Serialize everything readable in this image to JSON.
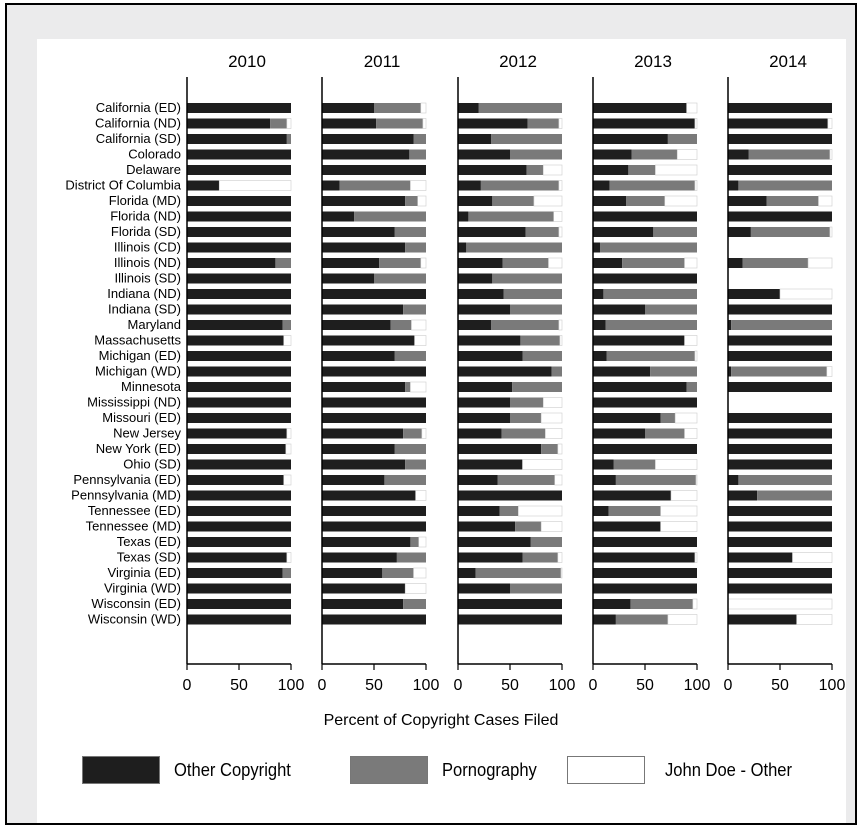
{
  "chart_data": {
    "type": "bar",
    "orientation": "horizontal",
    "stacked": true,
    "xlabel": "Percent of Copyright Cases Filed",
    "xlim": [
      0,
      100
    ],
    "xticks": [
      "0",
      "50",
      "100"
    ],
    "panels": [
      "2010",
      "2011",
      "2012",
      "2013",
      "2014"
    ],
    "categories": [
      "California (ED)",
      "California (ND)",
      "California (SD)",
      "Colorado",
      "Delaware",
      "District Of Columbia",
      "Florida (MD)",
      "Florida (ND)",
      "Florida (SD)",
      "Illinois (CD)",
      "Illinois (ND)",
      "Illinois (SD)",
      "Indiana (ND)",
      "Indiana (SD)",
      "Maryland",
      "Massachusetts",
      "Michigan (ED)",
      "Michigan (WD)",
      "Minnesota",
      "Mississippi (ND)",
      "Missouri (ED)",
      "New Jersey",
      "New York (ED)",
      "Ohio (SD)",
      "Pennsylvania (ED)",
      "Pennsylvania (MD)",
      "Tennessee (ED)",
      "Tennessee (MD)",
      "Texas (ED)",
      "Texas (SD)",
      "Virginia (ED)",
      "Virginia (WD)",
      "Wisconsin (ED)",
      "Wisconsin (WD)"
    ],
    "series": [
      {
        "name": "Other Copyright",
        "color": "#1e1e1e"
      },
      {
        "name": "Pornography",
        "color": "#7a7a7a"
      },
      {
        "name": "John Doe - Other",
        "color": "#ffffff"
      }
    ],
    "data": {
      "2010": [
        [
          100,
          0,
          0
        ],
        [
          80,
          16,
          4
        ],
        [
          96,
          4,
          0
        ],
        [
          100,
          0,
          0
        ],
        [
          100,
          0,
          0
        ],
        [
          31,
          0,
          69
        ],
        [
          100,
          0,
          0
        ],
        [
          100,
          0,
          0
        ],
        [
          100,
          0,
          0
        ],
        [
          100,
          0,
          0
        ],
        [
          85,
          15,
          0
        ],
        [
          100,
          0,
          0
        ],
        [
          100,
          0,
          0
        ],
        [
          100,
          0,
          0
        ],
        [
          92,
          8,
          0
        ],
        [
          93,
          0,
          7
        ],
        [
          100,
          0,
          0
        ],
        [
          100,
          0,
          0
        ],
        [
          100,
          0,
          0
        ],
        [
          100,
          0,
          0
        ],
        [
          100,
          0,
          0
        ],
        [
          96,
          0,
          4
        ],
        [
          95,
          0,
          5
        ],
        [
          100,
          0,
          0
        ],
        [
          93,
          0,
          7
        ],
        [
          100,
          0,
          0
        ],
        [
          100,
          0,
          0
        ],
        [
          100,
          0,
          0
        ],
        [
          100,
          0,
          0
        ],
        [
          96,
          0,
          4
        ],
        [
          92,
          8,
          0
        ],
        [
          100,
          0,
          0
        ],
        [
          100,
          0,
          0
        ],
        [
          100,
          0,
          0
        ]
      ],
      "2011": [
        [
          50,
          45,
          5
        ],
        [
          52,
          45,
          3
        ],
        [
          88,
          12,
          0
        ],
        [
          84,
          16,
          0
        ],
        [
          100,
          0,
          0
        ],
        [
          17,
          68,
          15
        ],
        [
          80,
          12,
          8
        ],
        [
          31,
          69,
          0
        ],
        [
          70,
          30,
          0
        ],
        [
          80,
          20,
          0
        ],
        [
          55,
          40,
          5
        ],
        [
          50,
          50,
          0
        ],
        [
          100,
          0,
          0
        ],
        [
          78,
          22,
          0
        ],
        [
          66,
          20,
          14
        ],
        [
          89,
          0,
          11
        ],
        [
          70,
          30,
          0
        ],
        [
          100,
          0,
          0
        ],
        [
          80,
          5,
          15
        ],
        [
          100,
          0,
          0
        ],
        [
          100,
          0,
          0
        ],
        [
          78,
          18,
          4
        ],
        [
          70,
          30,
          0
        ],
        [
          80,
          20,
          0
        ],
        [
          60,
          40,
          0
        ],
        [
          90,
          0,
          10
        ],
        [
          100,
          0,
          0
        ],
        [
          100,
          0,
          0
        ],
        [
          85,
          8,
          7
        ],
        [
          72,
          28,
          0
        ],
        [
          58,
          30,
          12
        ],
        [
          80,
          0,
          20
        ],
        [
          78,
          22,
          0
        ],
        [
          100,
          0,
          0
        ]
      ],
      "2012": [
        [
          20,
          80,
          0
        ],
        [
          67,
          30,
          3
        ],
        [
          32,
          68,
          0
        ],
        [
          50,
          50,
          0
        ],
        [
          66,
          16,
          18
        ],
        [
          22,
          75,
          3
        ],
        [
          33,
          40,
          27
        ],
        [
          10,
          82,
          8
        ],
        [
          65,
          32,
          3
        ],
        [
          8,
          92,
          0
        ],
        [
          43,
          44,
          13
        ],
        [
          33,
          67,
          0
        ],
        [
          44,
          56,
          0
        ],
        [
          50,
          50,
          0
        ],
        [
          32,
          65,
          3
        ],
        [
          60,
          38,
          2
        ],
        [
          62,
          38,
          0
        ],
        [
          90,
          10,
          0
        ],
        [
          52,
          48,
          0
        ],
        [
          50,
          32,
          18
        ],
        [
          50,
          30,
          20
        ],
        [
          42,
          42,
          16
        ],
        [
          80,
          16,
          4
        ],
        [
          62,
          0,
          38
        ],
        [
          38,
          55,
          7
        ],
        [
          100,
          0,
          0
        ],
        [
          40,
          18,
          42
        ],
        [
          55,
          25,
          20
        ],
        [
          70,
          30,
          0
        ],
        [
          62,
          34,
          4
        ],
        [
          17,
          82,
          1
        ],
        [
          50,
          50,
          0
        ],
        [
          100,
          0,
          0
        ],
        [
          100,
          0,
          0
        ]
      ],
      "2013": [
        [
          90,
          0,
          10
        ],
        [
          98,
          0,
          2
        ],
        [
          72,
          28,
          0
        ],
        [
          37,
          44,
          19
        ],
        [
          34,
          26,
          40
        ],
        [
          16,
          82,
          2
        ],
        [
          32,
          37,
          31
        ],
        [
          100,
          0,
          0
        ],
        [
          58,
          42,
          0
        ],
        [
          7,
          93,
          0
        ],
        [
          28,
          60,
          12
        ],
        [
          100,
          0,
          0
        ],
        [
          10,
          90,
          0
        ],
        [
          50,
          50,
          0
        ],
        [
          12,
          88,
          0
        ],
        [
          88,
          0,
          12
        ],
        [
          13,
          85,
          2
        ],
        [
          55,
          45,
          0
        ],
        [
          90,
          10,
          0
        ],
        [
          100,
          0,
          0
        ],
        [
          65,
          14,
          21
        ],
        [
          50,
          38,
          12
        ],
        [
          100,
          0,
          0
        ],
        [
          20,
          40,
          40
        ],
        [
          22,
          77,
          1
        ],
        [
          75,
          0,
          25
        ],
        [
          15,
          50,
          35
        ],
        [
          65,
          0,
          35
        ],
        [
          100,
          0,
          0
        ],
        [
          98,
          0,
          2
        ],
        [
          100,
          0,
          0
        ],
        [
          100,
          0,
          0
        ],
        [
          36,
          60,
          4
        ],
        [
          22,
          50,
          28
        ]
      ],
      "2014": [
        [
          100,
          0,
          0
        ],
        [
          96,
          0,
          4
        ],
        [
          100,
          0,
          0
        ],
        [
          20,
          78,
          2
        ],
        [
          100,
          0,
          0
        ],
        [
          10,
          90,
          0
        ],
        [
          37,
          50,
          13
        ],
        [
          100,
          0,
          0
        ],
        [
          22,
          76,
          2
        ],
        null,
        [
          14,
          63,
          23
        ],
        null,
        [
          50,
          0,
          50
        ],
        [
          100,
          0,
          0
        ],
        [
          3,
          97,
          0
        ],
        [
          100,
          0,
          0
        ],
        [
          100,
          0,
          0
        ],
        [
          3,
          92,
          5
        ],
        [
          100,
          0,
          0
        ],
        null,
        [
          100,
          0,
          0
        ],
        [
          100,
          0,
          0
        ],
        [
          100,
          0,
          0
        ],
        [
          100,
          0,
          0
        ],
        [
          10,
          90,
          0
        ],
        [
          28,
          72,
          0
        ],
        [
          100,
          0,
          0
        ],
        [
          100,
          0,
          0
        ],
        [
          100,
          0,
          0
        ],
        [
          62,
          0,
          38
        ],
        [
          100,
          0,
          0
        ],
        [
          100,
          0,
          0
        ],
        [
          0,
          0,
          100
        ],
        [
          66,
          0,
          34
        ]
      ]
    }
  },
  "legend": {
    "items": [
      {
        "label": "Other Copyright",
        "color": "#1e1e1e"
      },
      {
        "label": "Pornography",
        "color": "#7a7a7a"
      },
      {
        "label": "John Doe - Other",
        "color": "#ffffff"
      }
    ]
  }
}
